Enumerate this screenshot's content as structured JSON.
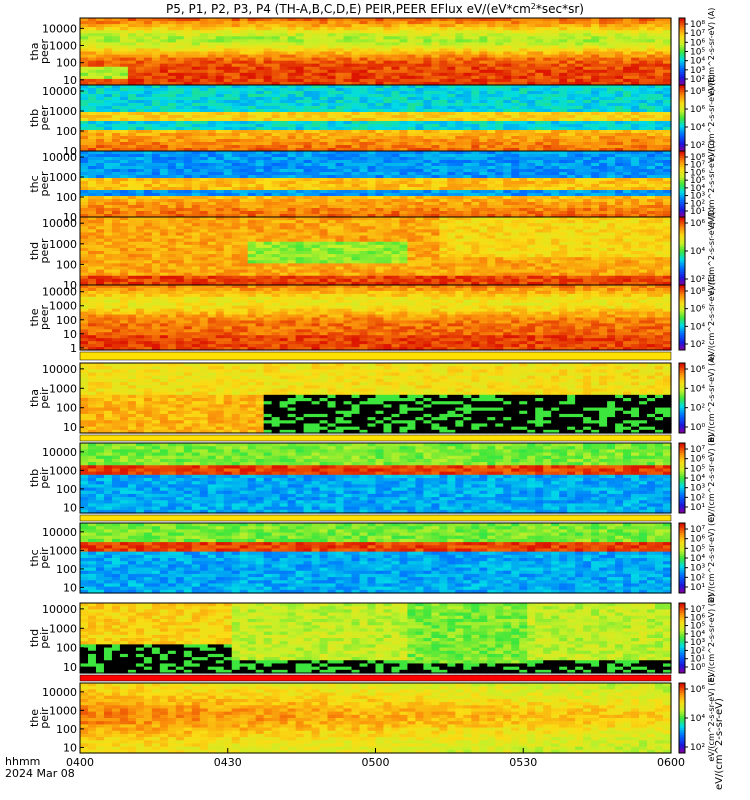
{
  "title": "P5, P1, P2, P3, P4 (TH-A,B,C,D,E) PEIR,PEER EFlux eV/(eV*cm",
  "title_sup": "2",
  "title_tail": "*sec*sr)",
  "footer": {
    "line1": "hhmm",
    "line2": "2024 Mar 08"
  },
  "cbar_unit": "eV/(cm^2-s-sr-eV)",
  "chart_data": [
    {
      "type": "heatmap",
      "panel": "tha peer",
      "ylabel": [
        "tha",
        "peer"
      ],
      "yscale": "log",
      "ylim": [
        5,
        40000
      ],
      "yticks": [
        "10",
        "100",
        "1000",
        "10000"
      ],
      "cbar_ticks": [
        "10²",
        "10³",
        "10⁴",
        "10⁵",
        "10⁶",
        "10⁷",
        "10⁸"
      ],
      "cbar_range": [
        2,
        8
      ],
      "profile": "eh_a",
      "cbar_label": "eV/(cm^2-s-sr-eV) (A)"
    },
    {
      "type": "heatmap",
      "panel": "thb peer",
      "ylabel": [
        "thb",
        "peer"
      ],
      "yscale": "log",
      "ylim": [
        10,
        20000
      ],
      "yticks": [
        "10",
        "100",
        "1000",
        "10000"
      ],
      "cbar_ticks": [
        "10²",
        "10⁴",
        "10⁶",
        "10⁸"
      ],
      "cbar_range": [
        1,
        9
      ],
      "profile": "eh_b",
      "cbar_label": "eV/(cm^2-s-sr-eV) (B)"
    },
    {
      "type": "heatmap",
      "panel": "thc peer",
      "ylabel": [
        "thc",
        "peer"
      ],
      "yscale": "log",
      "ylim": [
        10,
        20000
      ],
      "yticks": [
        "10",
        "100",
        "1000",
        "10000"
      ],
      "cbar_ticks": [
        "10¹",
        "10²",
        "10³",
        "10⁴",
        "10⁵",
        "10⁶",
        "10⁷",
        "10⁸"
      ],
      "cbar_range": [
        1,
        8
      ],
      "profile": "eh_c",
      "cbar_label": "eV/(cm^2-s-sr-eV) (C)"
    },
    {
      "type": "heatmap",
      "panel": "thd peer",
      "ylabel": [
        "thd",
        "peer"
      ],
      "yscale": "log",
      "ylim": [
        10,
        20000
      ],
      "yticks": [
        "10",
        "100",
        "1000",
        "10000"
      ],
      "cbar_ticks": [
        "10²",
        "10⁴",
        "10⁶"
      ],
      "cbar_range": [
        1,
        8
      ],
      "profile": "eh_d",
      "cbar_label": "eV/(cm^2-s-sr-eV) (D)"
    },
    {
      "type": "heatmap",
      "panel": "the peer",
      "ylabel": [
        "the",
        "peer"
      ],
      "yscale": "log",
      "ylim": [
        0.7,
        30000
      ],
      "yticks": [
        "1",
        "10",
        "100",
        "1000",
        "10000"
      ],
      "cbar_ticks": [
        "10²",
        "10⁴",
        "10⁶",
        "10⁸"
      ],
      "cbar_range": [
        1,
        9
      ],
      "profile": "eh_e",
      "cbar_label": "eV/(cm^2-s-sr-eV) (E)"
    },
    {
      "type": "heatmap",
      "panel": "tha peir",
      "ylabel": [
        "tha",
        "peir"
      ],
      "yscale": "log",
      "ylim": [
        5,
        20000
      ],
      "yticks": [
        "10",
        "100",
        "1000",
        "10000"
      ],
      "cbar_ticks": [
        "10⁰",
        "10²",
        "10⁴",
        "10⁶"
      ],
      "cbar_range": [
        0,
        7
      ],
      "profile": "ion_a",
      "cbar_label": "eV/(cm^2-s-sr-eV) (A)"
    },
    {
      "type": "heatmap",
      "panel": "thb peir",
      "ylabel": [
        "thb",
        "peir"
      ],
      "yscale": "log",
      "ylim": [
        5,
        30000
      ],
      "yticks": [
        "10",
        "100",
        "1000",
        "10000"
      ],
      "cbar_ticks": [
        "10¹",
        "10²",
        "10³",
        "10⁴",
        "10⁵",
        "10⁶",
        "10⁷"
      ],
      "cbar_range": [
        1,
        7
      ],
      "profile": "ion_b",
      "cbar_label": "eV/(cm^2-s-sr-eV) (B)"
    },
    {
      "type": "heatmap",
      "panel": "thc peir",
      "ylabel": [
        "thc",
        "peir"
      ],
      "yscale": "log",
      "ylim": [
        5,
        30000
      ],
      "yticks": [
        "10",
        "100",
        "1000",
        "10000"
      ],
      "cbar_ticks": [
        "10¹",
        "10²",
        "10³",
        "10⁴",
        "10⁵",
        "10⁶",
        "10⁷"
      ],
      "cbar_range": [
        1,
        7
      ],
      "profile": "ion_c",
      "cbar_label": "eV/(cm^2-s-sr-eV) (C)"
    },
    {
      "type": "heatmap",
      "panel": "thd peir",
      "ylabel": [
        "thd",
        "peir"
      ],
      "yscale": "log",
      "ylim": [
        5,
        20000
      ],
      "yticks": [
        "10",
        "100",
        "1000",
        "10000"
      ],
      "cbar_ticks": [
        "10⁰",
        "10¹",
        "10²",
        "10³",
        "10⁴",
        "10⁵",
        "10⁶",
        "10⁷"
      ],
      "cbar_range": [
        0,
        7
      ],
      "profile": "ion_d",
      "cbar_label": "eV/(cm^2-s-sr-eV) (D)"
    },
    {
      "type": "heatmap",
      "panel": "the peir",
      "ylabel": [
        "the",
        "peir"
      ],
      "yscale": "log",
      "ylim": [
        5,
        30000
      ],
      "yticks": [
        "10",
        "100",
        "1000",
        "10000"
      ],
      "cbar_ticks": [
        "10²",
        "10⁴",
        "10⁶"
      ],
      "cbar_range": [
        1,
        7
      ],
      "profile": "ion_e",
      "cbar_label": "eV/(cm^2-s-sr-eV) (E)"
    }
  ],
  "xaxis": {
    "ticks": [
      "0400",
      "0430",
      "0500",
      "0530",
      "0600"
    ],
    "range": [
      "0400",
      "0600"
    ]
  },
  "colors": {
    "black": "#000000",
    "axis": "#000000",
    "low": "#1020a0",
    "high": "#e02000"
  }
}
